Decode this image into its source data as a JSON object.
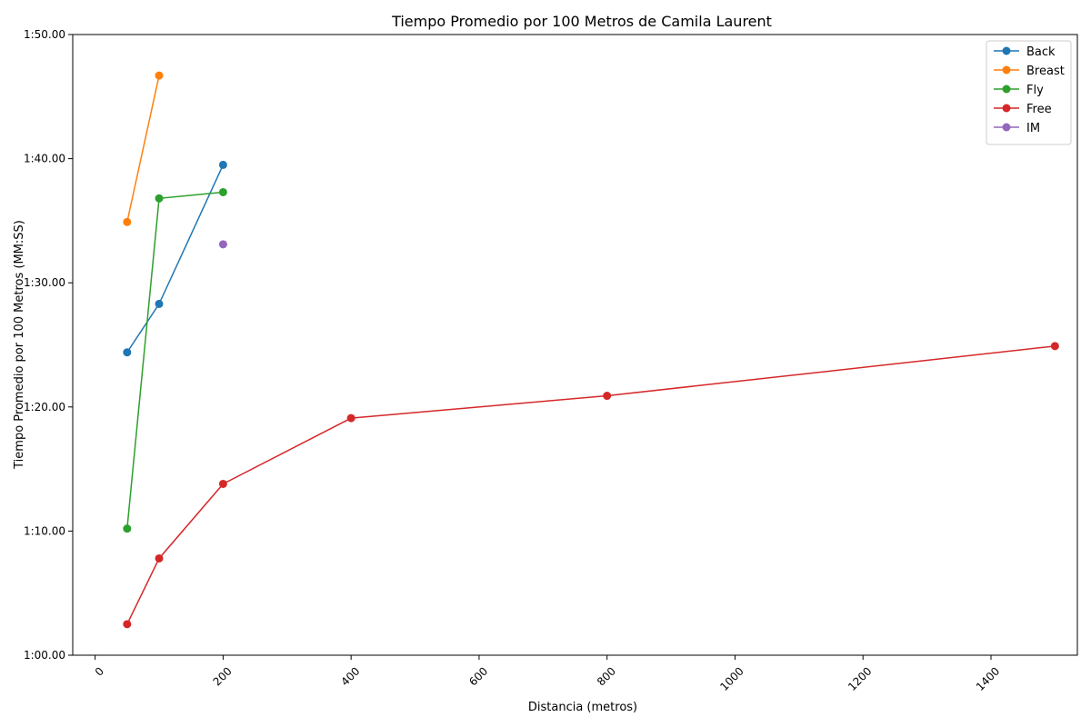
{
  "chart_data": {
    "type": "line",
    "title": "Tiempo Promedio por 100 Metros de Camila Laurent",
    "xlabel": "Distancia (metros)",
    "ylabel": "Tiempo Promedio por 100 Metros (MM:SS)",
    "xlim": [
      -35,
      1535
    ],
    "ylim": [
      60,
      110
    ],
    "x_ticks": [
      0,
      200,
      400,
      600,
      800,
      1000,
      1200,
      1400
    ],
    "x_tick_labels": [
      "0",
      "200",
      "400",
      "600",
      "800",
      "1000",
      "1200",
      "1400"
    ],
    "y_ticks": [
      60,
      70,
      80,
      90,
      100,
      110
    ],
    "y_tick_labels": [
      "1:00.00",
      "1:10.00",
      "1:20.00",
      "1:30.00",
      "1:40.00",
      "1:50.00"
    ],
    "grid": false,
    "legend_position": "top-right",
    "series": [
      {
        "name": "Back",
        "color": "#1f77b4",
        "x": [
          50,
          100,
          200
        ],
        "y": [
          84.4,
          88.3,
          99.5
        ]
      },
      {
        "name": "Breast",
        "color": "#ff7f0e",
        "x": [
          50,
          100
        ],
        "y": [
          94.9,
          106.7
        ]
      },
      {
        "name": "Fly",
        "color": "#2ca02c",
        "x": [
          50,
          100,
          200
        ],
        "y": [
          70.2,
          96.8,
          97.3
        ]
      },
      {
        "name": "Free",
        "color": "#d62728",
        "x": [
          50,
          100,
          200,
          400,
          800,
          1500
        ],
        "y": [
          62.5,
          67.8,
          73.8,
          79.1,
          80.9,
          84.9
        ]
      },
      {
        "name": "IM",
        "color": "#9467bd",
        "x": [
          200
        ],
        "y": [
          93.1
        ]
      }
    ]
  }
}
